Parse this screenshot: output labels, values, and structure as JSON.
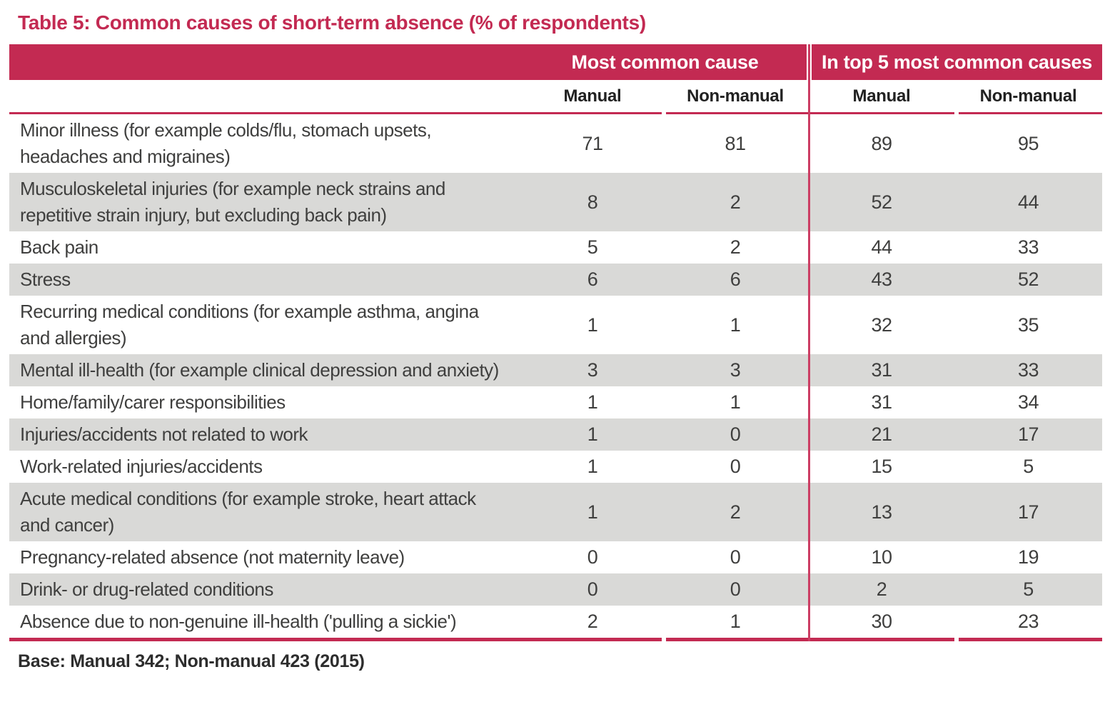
{
  "title": "Table 5: Common causes of short-term absence (% of respondents)",
  "table": {
    "group_headers": [
      {
        "label": "Most common cause"
      },
      {
        "label": "In top 5 most common causes"
      }
    ],
    "sub_headers": [
      "Manual",
      "Non-manual",
      "Manual",
      "Non-manual"
    ],
    "rows": [
      {
        "cause": "Minor illness (for example colds/flu, stomach upsets, headaches and migraines)",
        "values": [
          "71",
          "81",
          "89",
          "95"
        ]
      },
      {
        "cause": "Musculoskeletal injuries (for example neck strains and repetitive strain injury, but excluding back pain)",
        "values": [
          "8",
          "2",
          "52",
          "44"
        ]
      },
      {
        "cause": "Back pain",
        "values": [
          "5",
          "2",
          "44",
          "33"
        ]
      },
      {
        "cause": "Stress",
        "values": [
          "6",
          "6",
          "43",
          "52"
        ]
      },
      {
        "cause": "Recurring medical conditions (for example asthma, angina and allergies)",
        "values": [
          "1",
          "1",
          "32",
          "35"
        ]
      },
      {
        "cause": "Mental ill-health (for example clinical depression and anxiety)",
        "values": [
          "3",
          "3",
          "31",
          "33"
        ]
      },
      {
        "cause": "Home/family/carer responsibilities",
        "values": [
          "1",
          "1",
          "31",
          "34"
        ]
      },
      {
        "cause": "Injuries/accidents not related to work",
        "values": [
          "1",
          "0",
          "21",
          "17"
        ]
      },
      {
        "cause": "Work-related injuries/accidents",
        "values": [
          "1",
          "0",
          "15",
          "5"
        ]
      },
      {
        "cause": "Acute medical conditions (for example stroke, heart attack and cancer)",
        "values": [
          "1",
          "2",
          "13",
          "17"
        ]
      },
      {
        "cause": "Pregnancy-related absence (not maternity leave)",
        "values": [
          "0",
          "0",
          "10",
          "19"
        ]
      },
      {
        "cause": "Drink- or drug-related conditions",
        "values": [
          "0",
          "0",
          "2",
          "5"
        ]
      },
      {
        "cause": "Absence due to non-genuine ill-health ('pulling a sickie')",
        "values": [
          "2",
          "1",
          "30",
          "23"
        ]
      }
    ],
    "base_note": "Base: Manual 342; Non-manual 423 (2015)"
  },
  "colors": {
    "accent": "#C32A52",
    "row_alt": "#D9D9D7",
    "body_text": "#3F3F3E"
  }
}
